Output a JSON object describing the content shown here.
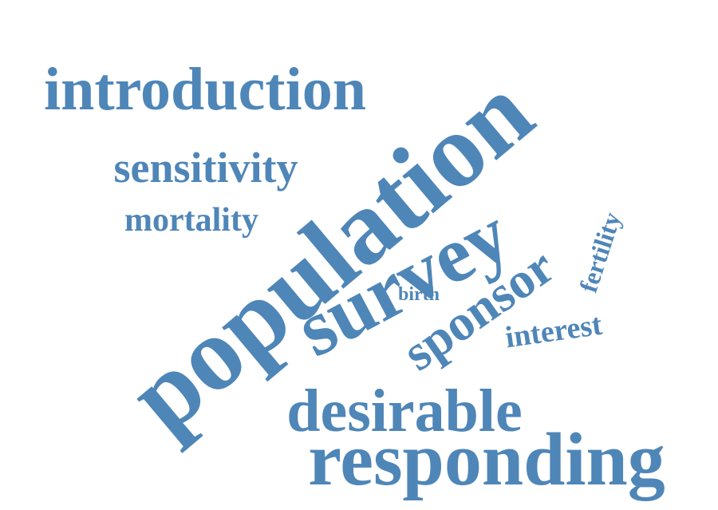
{
  "word_cloud": {
    "color": "#4f86b8",
    "words": [
      {
        "text": "population"
      },
      {
        "text": "survey"
      },
      {
        "text": "responding"
      },
      {
        "text": "desirable"
      },
      {
        "text": "introduction"
      },
      {
        "text": "sponsor"
      },
      {
        "text": "sensitivity"
      },
      {
        "text": "mortality"
      },
      {
        "text": "interest"
      },
      {
        "text": "fertility"
      },
      {
        "text": "birth"
      }
    ]
  }
}
